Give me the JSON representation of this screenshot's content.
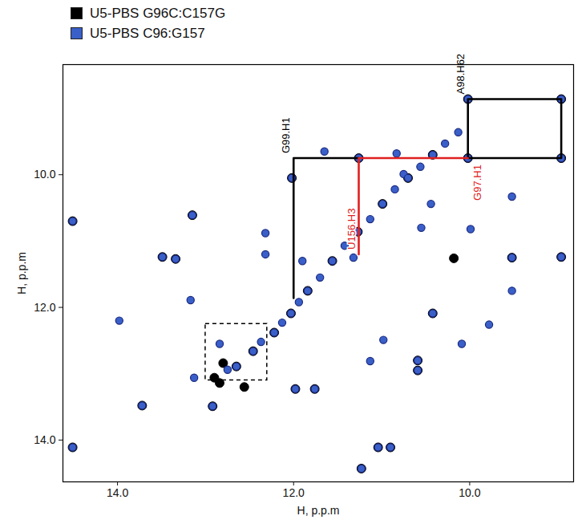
{
  "chart_data": {
    "type": "scatter",
    "panel": "b",
    "x_label": "H, p.p.m",
    "y_label": "H, p.p.m",
    "xlim": [
      14.62,
      8.82
    ],
    "ylim": [
      8.34,
      14.63
    ],
    "xticks": [
      {
        "value": 14,
        "label": "14.0"
      },
      {
        "value": 12,
        "label": "12.0"
      },
      {
        "value": 10,
        "label": "10.0"
      }
    ],
    "yticks": [
      {
        "value": 10,
        "label": "10.0"
      },
      {
        "value": 12,
        "label": "12.0"
      },
      {
        "value": 14,
        "label": "14.0"
      }
    ],
    "grid": false,
    "legend": "top-left",
    "series": [
      {
        "name": "U5-PBS G96C:C157G",
        "color": "#000000",
        "marker": "circle",
        "x": [
          14.51,
          14.51,
          13.72,
          13.49,
          13.34,
          13.15,
          12.9,
          12.8,
          12.56,
          12.84,
          12.65,
          12.46,
          12.22,
          12.03,
          11.84,
          11.56,
          11.27,
          10.99,
          10.7,
          10.42,
          12.02,
          11.26,
          10.02,
          8.96,
          8.96,
          10.02,
          11.98,
          11.76,
          10.59,
          10.59,
          11.04,
          10.9,
          11.23,
          10.42,
          9.52,
          8.96,
          10.18,
          12.92
        ],
        "y": [
          14.11,
          10.7,
          13.48,
          11.24,
          11.27,
          10.61,
          13.06,
          12.84,
          13.2,
          13.14,
          12.89,
          12.66,
          12.38,
          12.09,
          11.75,
          11.3,
          10.86,
          10.44,
          10.05,
          9.7,
          10.05,
          9.75,
          9.75,
          9.75,
          8.86,
          8.86,
          13.23,
          13.23,
          12.8,
          12.95,
          14.11,
          14.11,
          14.43,
          12.09,
          11.25,
          11.24,
          11.26,
          13.49
        ]
      },
      {
        "name": "U5-PBS C96:G157",
        "color": "#3a5fc8",
        "marker": "circle",
        "x": [
          14.51,
          14.51,
          13.72,
          13.49,
          13.34,
          13.15,
          13.98,
          13.13,
          12.92,
          13.17,
          12.32,
          12.32,
          11.98,
          11.76,
          11.04,
          10.9,
          11.23,
          10.59,
          10.59,
          11.13,
          10.98,
          10.42,
          10.09,
          9.78,
          9.52,
          9.52,
          8.96,
          9.52,
          9.99,
          10.55,
          11.32,
          11.9,
          12.02,
          11.65,
          10.83,
          10.75,
          10.44,
          11.26,
          10.02,
          8.96,
          8.96,
          10.02,
          12.75,
          12.65,
          12.46,
          12.37,
          12.22,
          12.13,
          12.03,
          11.94,
          11.84,
          11.7,
          11.56,
          11.42,
          11.27,
          11.13,
          10.99,
          10.85,
          10.7,
          10.56,
          10.42,
          10.28,
          10.13,
          12.84
        ],
        "y": [
          14.11,
          10.7,
          13.48,
          11.24,
          11.27,
          10.61,
          12.2,
          13.06,
          13.49,
          11.89,
          10.88,
          11.2,
          13.23,
          13.23,
          14.11,
          14.11,
          14.43,
          12.8,
          12.95,
          12.81,
          12.49,
          12.09,
          12.55,
          12.26,
          11.25,
          11.75,
          11.24,
          10.33,
          10.82,
          10.8,
          11.25,
          11.3,
          10.05,
          9.65,
          9.68,
          9.99,
          10.44,
          9.75,
          9.75,
          9.75,
          8.86,
          8.86,
          12.94,
          12.89,
          12.66,
          12.52,
          12.38,
          12.23,
          12.09,
          11.92,
          11.75,
          11.55,
          11.3,
          11.07,
          10.86,
          10.67,
          10.44,
          10.22,
          10.05,
          9.88,
          9.7,
          9.53,
          9.36,
          12.55
        ]
      }
    ],
    "connectivities": [
      {
        "color": "#000000",
        "x": [
          12.0,
          12.0,
          11.26
        ],
        "y": [
          11.86,
          9.75,
          9.75
        ]
      },
      {
        "color": "#000000",
        "x": [
          10.02,
          8.96,
          8.96,
          10.02,
          10.02
        ],
        "y": [
          9.75,
          9.75,
          8.86,
          8.86,
          9.75
        ]
      },
      {
        "color": "#e02020",
        "x": [
          11.26,
          11.26,
          10.02
        ],
        "y": [
          11.2,
          9.75,
          9.75
        ]
      }
    ],
    "annotations": [
      {
        "text": "G99.H1",
        "x": 12.0,
        "y": 9.75,
        "color": "#000000"
      },
      {
        "text": "A98.H62",
        "x": 10.02,
        "y": 8.86,
        "color": "#000000"
      },
      {
        "text": "U156.H3",
        "x": 11.26,
        "y": 11.2,
        "color": "#e02020"
      },
      {
        "text": "G97.H1",
        "x": 10.02,
        "y": 9.75,
        "color": "#e02020"
      }
    ],
    "highlight_box": {
      "x": [
        13.0,
        12.3
      ],
      "y": [
        12.25,
        13.1
      ],
      "line_style": "dashed"
    }
  }
}
